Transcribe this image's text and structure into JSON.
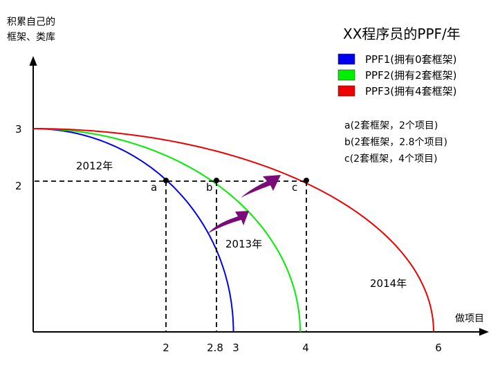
{
  "chart_data": {
    "type": "line",
    "title": "XX程序员的PPF/年",
    "ylabel_lines": [
      "积累自己的",
      "框架、类库"
    ],
    "xlabel": "做项目",
    "xlim": [
      0,
      6
    ],
    "ylim": [
      0,
      3
    ],
    "x_ticks": [
      "2",
      "2.8",
      "3",
      "4",
      "6"
    ],
    "y_ticks": [
      "3",
      "2"
    ],
    "series": [
      {
        "name": "PPF1(拥有0套框架)",
        "color": "#0000ee",
        "x_intercept": 3,
        "y_intercept": 3,
        "year_label": "2012年"
      },
      {
        "name": "PPF2(拥有2套框架)",
        "color": "#00ee00",
        "x_intercept": 4,
        "y_intercept": 3,
        "year_label": "2013年"
      },
      {
        "name": "PPF3(拥有4套框架)",
        "color": "#ee0000",
        "x_intercept": 6,
        "y_intercept": 3,
        "year_label": "2014年"
      }
    ],
    "points": [
      {
        "label": "a",
        "x": 2,
        "y": 2
      },
      {
        "label": "b",
        "x": 2.8,
        "y": 2
      },
      {
        "label": "c",
        "x": 4,
        "y": 2
      }
    ],
    "notes": [
      "a(2套框架，2个项目)",
      "b(2套框架，2.8个项目)",
      "c(2套框架，4个项目)"
    ],
    "grid": false,
    "legend_position": "top-right",
    "shift_arrow_color": "#7a0c7a"
  }
}
